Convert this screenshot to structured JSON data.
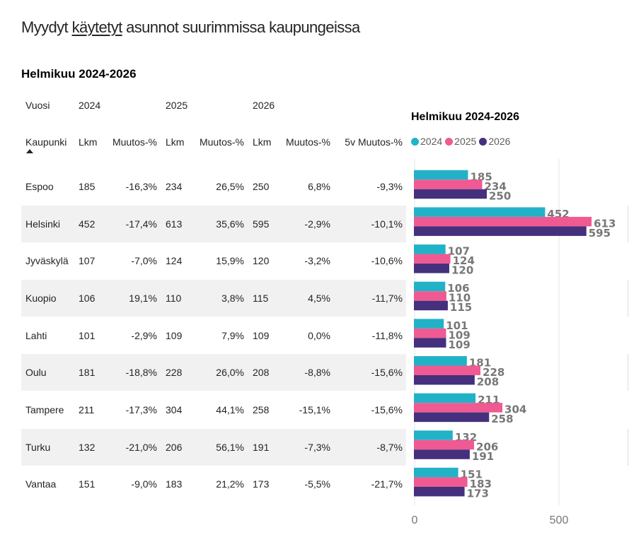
{
  "page": {
    "title_parts": [
      "Myydyt ",
      "käytetyt",
      " asunnot suurimmissa kaupungeissa"
    ],
    "subtitle": "Helmikuu 2024-2026"
  },
  "table": {
    "year_header_label": "Vuosi",
    "years": [
      "2024",
      "2025",
      "2026"
    ],
    "columns": [
      "Kaupunki",
      "Lkm",
      "Muutos-%",
      "Lkm",
      "Muutos-%",
      "Lkm",
      "Muutos-%",
      "5v Muutos-%"
    ],
    "sort_column": "Kaupunki",
    "sort_direction": "ascending",
    "rows": [
      {
        "city": "Espoo",
        "lkm2024": "185",
        "muutos2024": "-16,3%",
        "lkm2025": "234",
        "muutos2025": "26,5%",
        "lkm2026": "250",
        "muutos2026": "6,8%",
        "muutos5v": "-9,3%"
      },
      {
        "city": "Helsinki",
        "lkm2024": "452",
        "muutos2024": "-17,4%",
        "lkm2025": "613",
        "muutos2025": "35,6%",
        "lkm2026": "595",
        "muutos2026": "-2,9%",
        "muutos5v": "-10,1%"
      },
      {
        "city": "Jyväskylä",
        "lkm2024": "107",
        "muutos2024": "-7,0%",
        "lkm2025": "124",
        "muutos2025": "15,9%",
        "lkm2026": "120",
        "muutos2026": "-3,2%",
        "muutos5v": "-10,6%"
      },
      {
        "city": "Kuopio",
        "lkm2024": "106",
        "muutos2024": "19,1%",
        "lkm2025": "110",
        "muutos2025": "3,8%",
        "lkm2026": "115",
        "muutos2026": "4,5%",
        "muutos5v": "-11,7%"
      },
      {
        "city": "Lahti",
        "lkm2024": "101",
        "muutos2024": "-2,9%",
        "lkm2025": "109",
        "muutos2025": "7,9%",
        "lkm2026": "109",
        "muutos2026": "0,0%",
        "muutos5v": "-11,8%"
      },
      {
        "city": "Oulu",
        "lkm2024": "181",
        "muutos2024": "-18,8%",
        "lkm2025": "228",
        "muutos2025": "26,0%",
        "lkm2026": "208",
        "muutos2026": "-8,8%",
        "muutos5v": "-15,6%"
      },
      {
        "city": "Tampere",
        "lkm2024": "211",
        "muutos2024": "-17,3%",
        "lkm2025": "304",
        "muutos2025": "44,1%",
        "lkm2026": "258",
        "muutos2026": "-15,1%",
        "muutos5v": "-15,6%"
      },
      {
        "city": "Turku",
        "lkm2024": "132",
        "muutos2024": "-21,0%",
        "lkm2025": "206",
        "muutos2025": "56,1%",
        "lkm2026": "191",
        "muutos2026": "-7,3%",
        "muutos5v": "-8,7%"
      },
      {
        "city": "Vantaa",
        "lkm2024": "151",
        "muutos2024": "-9,0%",
        "lkm2025": "183",
        "muutos2025": "21,2%",
        "lkm2026": "173",
        "muutos2026": "-5,5%",
        "muutos5v": "-21,7%"
      }
    ]
  },
  "chart_data": {
    "type": "bar",
    "orientation": "horizontal",
    "title": "Helmikuu 2024-2026",
    "categories": [
      "Espoo",
      "Helsinki",
      "Jyväskylä",
      "Kuopio",
      "Lahti",
      "Oulu",
      "Tampere",
      "Turku",
      "Vantaa"
    ],
    "series": [
      {
        "name": "2024",
        "color": "#22b2c8",
        "values": [
          185,
          452,
          107,
          106,
          101,
          181,
          211,
          132,
          151
        ]
      },
      {
        "name": "2025",
        "color": "#ef5a92",
        "values": [
          234,
          613,
          124,
          110,
          109,
          228,
          304,
          206,
          183
        ]
      },
      {
        "name": "2026",
        "color": "#44307d",
        "values": [
          250,
          595,
          120,
          115,
          109,
          208,
          258,
          191,
          173
        ]
      }
    ],
    "xlim": [
      0,
      740
    ],
    "x_ticks": [
      "0",
      "500"
    ],
    "x_tick_values": [
      0,
      500
    ],
    "grid": true,
    "legend": "top-left",
    "data_labels": true,
    "label_color": "#777777"
  }
}
